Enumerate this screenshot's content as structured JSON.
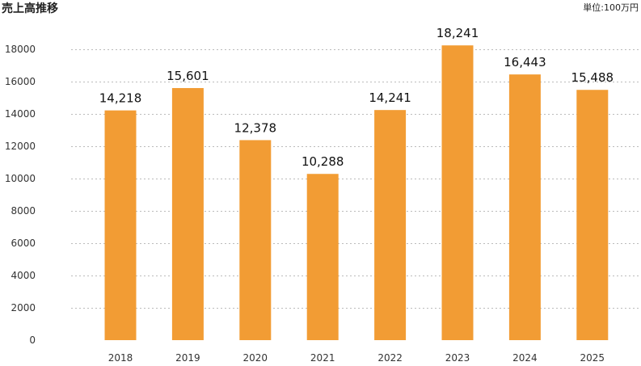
{
  "chart_data": {
    "type": "bar",
    "title": "売上高推移",
    "unit": "単位:100万円",
    "categories": [
      "2018",
      "2019",
      "2020",
      "2021",
      "2022",
      "2023",
      "2024",
      "2025"
    ],
    "values": [
      14218,
      15601,
      12378,
      10288,
      14241,
      18241,
      16443,
      15488
    ],
    "value_labels": [
      "14,218",
      "15,601",
      "12,378",
      "10,288",
      "14,241",
      "18,241",
      "16,443",
      "15,488"
    ],
    "yticks": [
      "0",
      "2000",
      "4000",
      "6000",
      "8000",
      "10000",
      "12000",
      "14000",
      "16000",
      "18000"
    ],
    "ylim": [
      0,
      20000
    ],
    "grid": true,
    "bar_color": "#f29c34"
  }
}
